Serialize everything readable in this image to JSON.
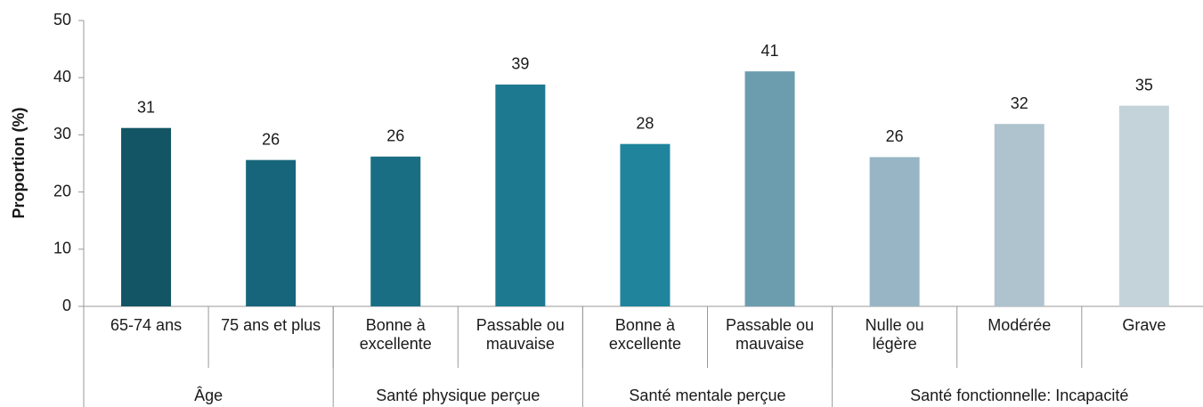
{
  "chart_data": {
    "type": "bar",
    "ylabel": "Proportion (%)",
    "categories": [
      "65-74 ans",
      "75 ans et plus",
      "Bonne à excellente",
      "Passable ou mauvaise",
      "Bonne à excellente",
      "Passable ou mauvaise",
      "Nulle ou légère",
      "Modérée",
      "Grave"
    ],
    "groups": [
      {
        "label": "Âge",
        "span": 2
      },
      {
        "label": "Santé physique perçue",
        "span": 2
      },
      {
        "label": "Santé mentale perçue",
        "span": 2
      },
      {
        "label": "Santé fonctionnelle: Incapacité",
        "span": 3
      }
    ],
    "values": [
      31.2,
      25.6,
      26.2,
      38.8,
      28.4,
      41.1,
      26.1,
      31.9,
      35.1
    ],
    "value_labels": [
      "31",
      "26",
      "26",
      "39",
      "28",
      "41",
      "26",
      "32",
      "35"
    ],
    "colors": [
      "#135564",
      "#17657a",
      "#1a6e84",
      "#1d7990",
      "#1f849c",
      "#6b9daf",
      "#97b5c4",
      "#aec3ce",
      "#c4d3da"
    ],
    "ylim": [
      0,
      50
    ],
    "yticks": [
      0,
      10,
      20,
      30,
      40,
      50
    ]
  }
}
